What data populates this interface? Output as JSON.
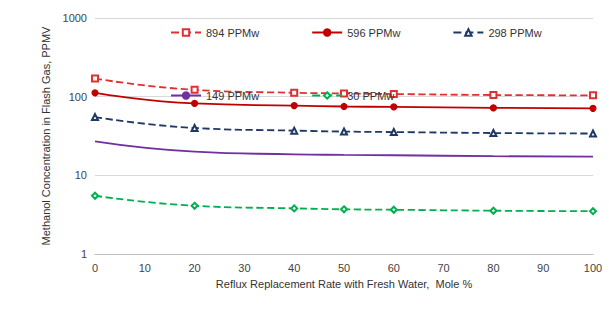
{
  "chart_data": {
    "type": "line",
    "x_label": "Reflux Replacement Rate with Fresh Water,  Mole %",
    "y_label": "Methanol Concentration in Flash Gas, PPMV",
    "log": "y",
    "grid": true,
    "legend": "top",
    "xlim": [
      0,
      100
    ],
    "xticks": [
      0,
      10,
      20,
      30,
      40,
      50,
      60,
      70,
      80,
      90,
      100
    ],
    "ylim": [
      1,
      1000
    ],
    "yticks": [
      1,
      10,
      100,
      1000
    ],
    "x": [
      0,
      20,
      40,
      50,
      60,
      80,
      100
    ],
    "series": [
      {
        "name": "894 PPMw",
        "color": "#e03030",
        "marker": "open-square",
        "line_style": "dashed",
        "values": [
          170,
          122,
          112,
          110,
          108,
          105,
          104
        ]
      },
      {
        "name": "596 PPMw",
        "color": "#c00000",
        "marker": "circle",
        "line_style": "solid",
        "values": [
          112,
          82,
          77,
          75,
          74,
          72,
          71
        ]
      },
      {
        "name": "298 PPMw",
        "color": "#1f3864",
        "marker": "open-triangle",
        "line_style": "dashed",
        "values": [
          55,
          40,
          37,
          36,
          35.5,
          34.5,
          34
        ]
      },
      {
        "name": "149 PPMw",
        "color": "#7030a0",
        "marker": "none",
        "line_style": "solid",
        "values": [
          27,
          20,
          18.5,
          18.2,
          18,
          17.5,
          17.3
        ]
      },
      {
        "name": "30 PPMw",
        "color": "#00b050",
        "marker": "open-diamond",
        "line_style": "dashed",
        "values": [
          5.5,
          4.1,
          3.8,
          3.7,
          3.65,
          3.55,
          3.5
        ]
      }
    ]
  }
}
